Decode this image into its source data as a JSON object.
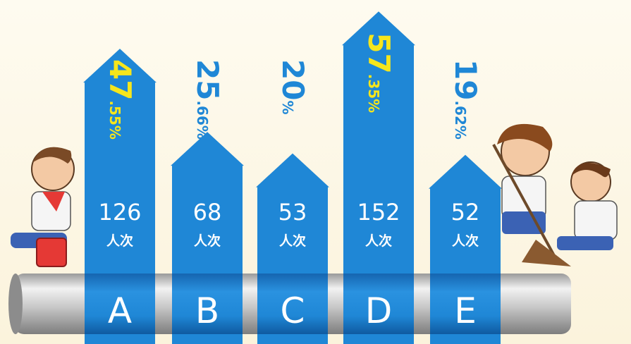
{
  "chart_data": {
    "type": "bar",
    "categories": [
      "A",
      "B",
      "C",
      "D",
      "E"
    ],
    "values": [
      126,
      68,
      53,
      152,
      52
    ],
    "unit": "人次",
    "color": "#1f87d6",
    "ylim": [
      -80,
      160
    ],
    "percentages": [
      47.55,
      25.66,
      20,
      57.35,
      19.62
    ],
    "percentage_labels": [
      "47.55%",
      "25.66%",
      "20%",
      "57.35%",
      "19.62%"
    ],
    "percentage_colors": [
      "#f6e61c",
      "#1f87d6",
      "#1f87d6",
      "#f6e61c",
      "#1f87d6"
    ]
  }
}
